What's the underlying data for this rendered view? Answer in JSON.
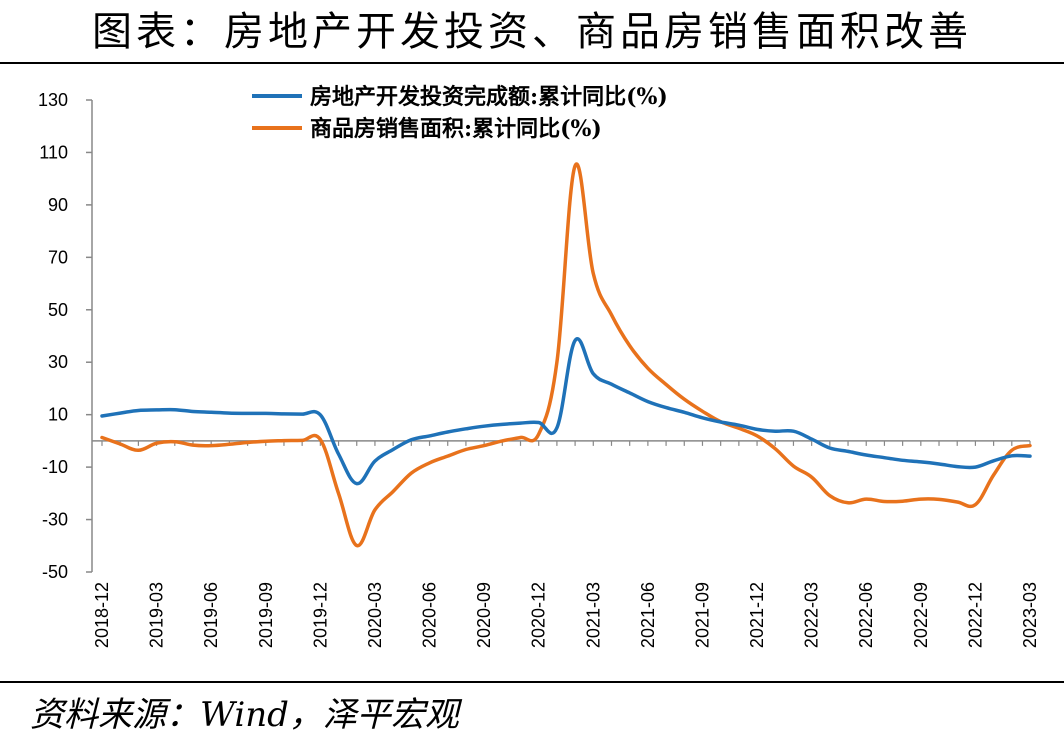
{
  "title": "图表：房地产开发投资、商品房销售面积改善",
  "source": "资料来源：Wind，泽平宏观",
  "chart_data": {
    "type": "line",
    "ylim": [
      -50,
      130
    ],
    "yticks": [
      130,
      110,
      90,
      70,
      50,
      30,
      10,
      -10,
      -30,
      -50
    ],
    "x_tick_labels": [
      "2018-12",
      "2019-03",
      "2019-06",
      "2019-09",
      "2019-12",
      "2020-03",
      "2020-06",
      "2020-09",
      "2020-12",
      "2021-03",
      "2021-06",
      "2021-09",
      "2021-12",
      "2022-03",
      "2022-06",
      "2022-09",
      "2022-12",
      "2023-03"
    ],
    "x": [
      "2018-12",
      "2019-01",
      "2019-02",
      "2019-03",
      "2019-04",
      "2019-05",
      "2019-06",
      "2019-07",
      "2019-08",
      "2019-09",
      "2019-10",
      "2019-11",
      "2019-12",
      "2020-01",
      "2020-02",
      "2020-03",
      "2020-04",
      "2020-05",
      "2020-06",
      "2020-07",
      "2020-08",
      "2020-09",
      "2020-10",
      "2020-11",
      "2020-12",
      "2021-01",
      "2021-02",
      "2021-03",
      "2021-04",
      "2021-05",
      "2021-06",
      "2021-07",
      "2021-08",
      "2021-09",
      "2021-10",
      "2021-11",
      "2021-12",
      "2022-01",
      "2022-02",
      "2022-03",
      "2022-04",
      "2022-05",
      "2022-06",
      "2022-07",
      "2022-08",
      "2022-09",
      "2022-10",
      "2022-11",
      "2022-12",
      "2023-01",
      "2023-02",
      "2023-03"
    ],
    "series": [
      {
        "name": "房地产开发投资完成额:累计同比(%)",
        "color": "#1f72b8",
        "values": [
          9.5,
          10.6,
          11.6,
          11.8,
          11.9,
          11.2,
          10.9,
          10.6,
          10.5,
          10.5,
          10.3,
          10.2,
          9.9,
          -5.0,
          -16.3,
          -7.7,
          -3.3,
          0.4,
          1.9,
          3.4,
          4.6,
          5.6,
          6.3,
          6.8,
          7.0,
          5.0,
          38.3,
          25.6,
          21.6,
          18.3,
          15.0,
          12.7,
          10.9,
          8.8,
          7.2,
          6.0,
          4.4,
          3.7,
          3.7,
          0.7,
          -2.7,
          -4.0,
          -5.4,
          -6.4,
          -7.4,
          -8.0,
          -8.8,
          -9.8,
          -10.0,
          -7.6,
          -5.7,
          -5.8
        ]
      },
      {
        "name": "商品房销售面积:累计同比(%)",
        "color": "#e8721c",
        "values": [
          1.3,
          -1.2,
          -3.6,
          -0.9,
          -0.3,
          -1.6,
          -1.8,
          -1.3,
          -0.6,
          -0.1,
          0.1,
          0.2,
          0.5,
          -20.0,
          -39.9,
          -26.3,
          -19.3,
          -12.3,
          -8.4,
          -5.8,
          -3.3,
          -1.8,
          0.0,
          1.3,
          2.6,
          30.0,
          104.9,
          63.8,
          48.1,
          36.3,
          27.7,
          21.5,
          15.9,
          11.3,
          7.3,
          4.8,
          1.9,
          -3.0,
          -9.6,
          -13.8,
          -20.9,
          -23.6,
          -22.2,
          -23.1,
          -23.0,
          -22.2,
          -22.3,
          -23.3,
          -24.3,
          -13.0,
          -3.6,
          -1.8
        ]
      }
    ]
  }
}
